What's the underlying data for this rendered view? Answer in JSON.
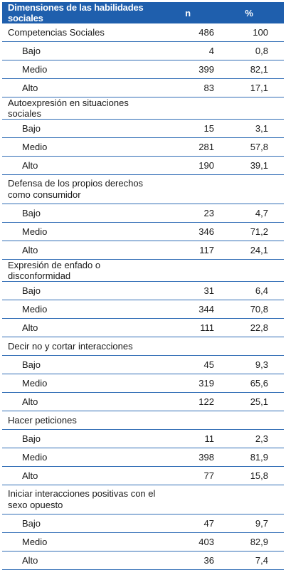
{
  "header": {
    "dimension": "Dimensiones de las habilidades sociales",
    "n": "n",
    "pct": "%"
  },
  "rows": [
    {
      "type": "cat",
      "label": "Competencias Sociales",
      "n": "486",
      "p": "100"
    },
    {
      "type": "sub",
      "label": "Bajo",
      "n": "4",
      "p": "0,8"
    },
    {
      "type": "sub",
      "label": "Medio",
      "n": "399",
      "p": "82,1"
    },
    {
      "type": "sub",
      "label": "Alto",
      "n": "83",
      "p": "17,1"
    },
    {
      "type": "cat",
      "label": "Autoexpresión en situaciones sociales",
      "n": "",
      "p": ""
    },
    {
      "type": "sub",
      "label": "Bajo",
      "n": "15",
      "p": "3,1"
    },
    {
      "type": "sub",
      "label": "Medio",
      "n": "281",
      "p": "57,8"
    },
    {
      "type": "sub",
      "label": "Alto",
      "n": "190",
      "p": "39,1"
    },
    {
      "type": "cat",
      "label": "Defensa de los propios derechos como consumidor",
      "n": "",
      "p": ""
    },
    {
      "type": "sub",
      "label": "Bajo",
      "n": "23",
      "p": "4,7"
    },
    {
      "type": "sub",
      "label": "Medio",
      "n": "346",
      "p": "71,2"
    },
    {
      "type": "sub",
      "label": "Alto",
      "n": "117",
      "p": "24,1"
    },
    {
      "type": "cat",
      "label": "Expresión de enfado o disconformidad",
      "n": "",
      "p": ""
    },
    {
      "type": "sub",
      "label": "Bajo",
      "n": "31",
      "p": "6,4"
    },
    {
      "type": "sub",
      "label": "Medio",
      "n": "344",
      "p": "70,8"
    },
    {
      "type": "sub",
      "label": "Alto",
      "n": "111",
      "p": "22,8"
    },
    {
      "type": "cat",
      "label": "Decir no y cortar interacciones",
      "n": "",
      "p": ""
    },
    {
      "type": "sub",
      "label": "Bajo",
      "n": "45",
      "p": "9,3"
    },
    {
      "type": "sub",
      "label": "Medio",
      "n": "319",
      "p": "65,6"
    },
    {
      "type": "sub",
      "label": "Alto",
      "n": "122",
      "p": "25,1"
    },
    {
      "type": "cat",
      "label": "Hacer peticiones",
      "n": "",
      "p": ""
    },
    {
      "type": "sub",
      "label": "Bajo",
      "n": "11",
      "p": "2,3"
    },
    {
      "type": "sub",
      "label": "Medio",
      "n": "398",
      "p": "81,9"
    },
    {
      "type": "sub",
      "label": "Alto",
      "n": "77",
      "p": "15,8"
    },
    {
      "type": "cat",
      "label": "Iniciar interacciones positivas con el sexo opuesto",
      "n": "",
      "p": ""
    },
    {
      "type": "sub",
      "label": "Bajo",
      "n": "47",
      "p": "9,7"
    },
    {
      "type": "sub",
      "label": "Medio",
      "n": "403",
      "p": "82,9"
    },
    {
      "type": "sub",
      "label": "Alto",
      "n": "36",
      "p": "7,4"
    }
  ]
}
